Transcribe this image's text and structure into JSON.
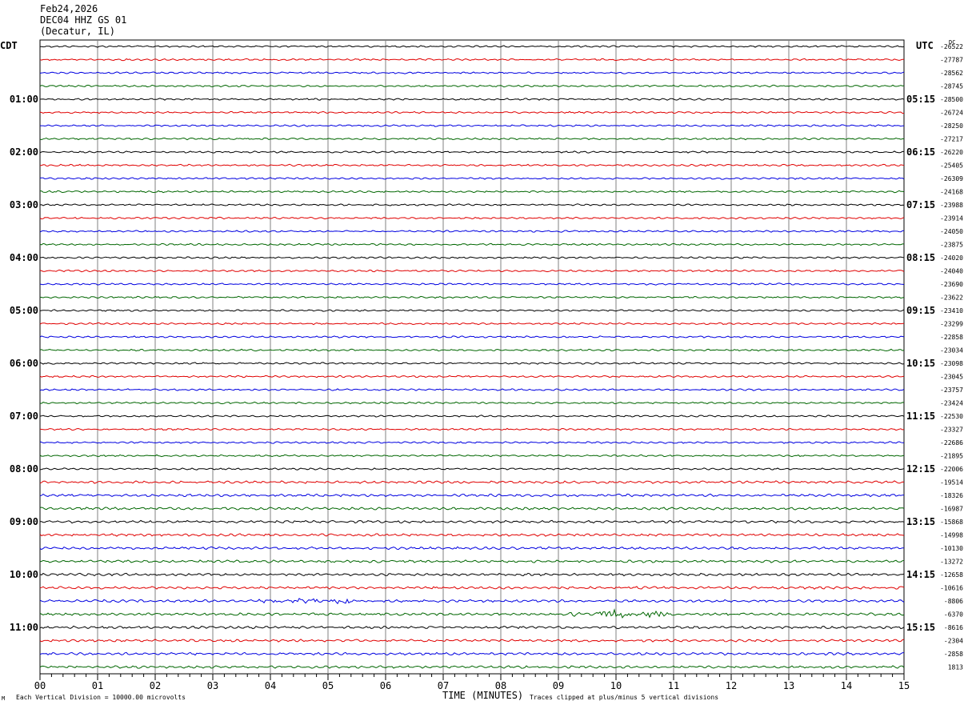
{
  "header": {
    "date": "Feb24,2026",
    "station": "DEC04 HHZ GS 01",
    "location": "(Decatur, IL)"
  },
  "labels": {
    "left_zone": "CDT",
    "right_zone": "UTC",
    "dc": "DC",
    "xlabel": "TIME (MINUTES)",
    "footer_left": "Each Vertical Division = 10000.00 microvolts",
    "footer_right": "Traces clipped at plus/minus 5 vertical divisions",
    "corner_mark": "M"
  },
  "colors": {
    "trace_cycle": [
      "#000000",
      "#e00000",
      "#0000e0",
      "#006600"
    ],
    "grid": "#808080",
    "frame": "#000000"
  },
  "chart_data": {
    "type": "line",
    "title": "DEC04 HHZ GS 01",
    "xlabel": "TIME (MINUTES)",
    "ylabel": "",
    "xlim": [
      0,
      15
    ],
    "x_ticks": [
      "00",
      "01",
      "02",
      "03",
      "04",
      "05",
      "06",
      "07",
      "08",
      "09",
      "10",
      "11",
      "12",
      "13",
      "14",
      "15"
    ],
    "rows": 48,
    "rows_per_hour": 4,
    "grid": true,
    "left_time_labels": [
      "01:00",
      "02:00",
      "03:00",
      "04:00",
      "05:00",
      "06:00",
      "07:00",
      "08:00",
      "09:00",
      "10:00",
      "11:00"
    ],
    "left_label_rows": [
      4,
      8,
      12,
      16,
      20,
      24,
      28,
      32,
      36,
      40,
      44
    ],
    "right_time_labels": [
      "05:15",
      "06:15",
      "07:15",
      "08:15",
      "09:15",
      "10:15",
      "11:15",
      "12:15",
      "13:15",
      "14:15",
      "15:15"
    ],
    "right_label_rows": [
      4,
      8,
      12,
      16,
      20,
      24,
      28,
      32,
      36,
      40,
      44
    ],
    "dc_offsets": [
      "-26522",
      "-27787",
      "-28562",
      "-28745",
      "-28500",
      "-26724",
      "-28250",
      "-27217",
      "-26220",
      "-25405",
      "-26309",
      "-24168",
      "-23988",
      "-23914",
      "-24050",
      "-23875",
      "-24020",
      "-24040",
      "-23690",
      "-23622",
      "-23410",
      "-23299",
      "-22858",
      "-23034",
      "-23098",
      "-23045",
      "-23757",
      "-23424",
      "-22530",
      "-23327",
      "-22686",
      "-21895",
      "-22006",
      "-19514",
      "-18326",
      "-16987",
      "-15868",
      "-14998",
      "-10130",
      "-13272",
      "-12658",
      "-10616",
      "-8806",
      "-6370",
      "-8616",
      "-2304",
      "-2858",
      "1813"
    ],
    "events": [
      {
        "row": 42,
        "start_min": 3.7,
        "end_min": 5.8,
        "amplitude_divisions": 0.3
      },
      {
        "row": 43,
        "start_min": 9.0,
        "end_min": 11.2,
        "amplitude_divisions": 0.45
      }
    ],
    "series": [
      {
        "name": "",
        "color": "#000000"
      },
      {
        "name": "",
        "color": "#e00000"
      },
      {
        "name": "",
        "color": "#0000e0"
      },
      {
        "name": "",
        "color": "#006600"
      }
    ]
  }
}
